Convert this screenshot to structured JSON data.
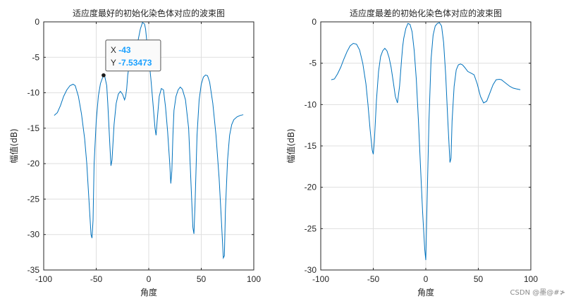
{
  "chart_data": [
    {
      "type": "line",
      "title": "适应度最好的初始化染色体对应的波束图",
      "xlabel": "角度",
      "ylabel": "幅值(dB)",
      "xlim": [
        -100,
        100
      ],
      "ylim": [
        -35,
        0
      ],
      "xticks": [
        "-100",
        "-50",
        "0",
        "50",
        "100"
      ],
      "yticks": [
        "0",
        "-5",
        "-10",
        "-15",
        "-20",
        "-25",
        "-30",
        "-35"
      ],
      "grid": true,
      "color": "#0072BD",
      "x": [
        -90,
        -87,
        -84,
        -81,
        -78,
        -75,
        -72,
        -70,
        -67,
        -64,
        -61,
        -59,
        -57,
        -55,
        -54,
        -53,
        -52,
        -50,
        -48,
        -46,
        -44,
        -43,
        -42,
        -40,
        -39,
        -38,
        -37,
        -36,
        -35,
        -33,
        -31,
        -29,
        -27,
        -25,
        -23,
        -22,
        -21,
        -20,
        -18,
        -16,
        -14,
        -12,
        -10,
        -8,
        -6,
        -4,
        -3,
        -2,
        0,
        2,
        4,
        6,
        7,
        8,
        10,
        12,
        14,
        16,
        18,
        20,
        21,
        22,
        23,
        24,
        26,
        28,
        30,
        32,
        35,
        38,
        40,
        42,
        43,
        44,
        46,
        48,
        50,
        52,
        54,
        56,
        58,
        61,
        64,
        67,
        69,
        71,
        72,
        73,
        75,
        77,
        79,
        81,
        84,
        87,
        90
      ],
      "y": [
        -13.2,
        -12.8,
        -11.8,
        -10.5,
        -9.6,
        -9.0,
        -8.8,
        -9.0,
        -10.5,
        -13.0,
        -16.5,
        -20.0,
        -25.0,
        -30.0,
        -30.5,
        -28.0,
        -20.0,
        -14.0,
        -10.5,
        -8.7,
        -7.9,
        -7.53,
        -7.6,
        -9.0,
        -11.5,
        -14.5,
        -17.5,
        -20.3,
        -19.5,
        -14.5,
        -11.5,
        -10.2,
        -9.8,
        -10.2,
        -11.0,
        -10.5,
        -9.5,
        -7.5,
        -5.5,
        -4.5,
        -4.0,
        -3.5,
        -2.5,
        -1.0,
        -0.1,
        -0.3,
        -1.0,
        -2.5,
        -5.0,
        -8.0,
        -11.5,
        -15.0,
        -16.0,
        -14.0,
        -10.5,
        -9.4,
        -9.6,
        -12.0,
        -15.5,
        -20.0,
        -22.8,
        -21.0,
        -16.0,
        -12.5,
        -10.5,
        -9.6,
        -9.2,
        -9.5,
        -11.0,
        -15.0,
        -22.0,
        -29.0,
        -29.9,
        -26.0,
        -16.0,
        -11.0,
        -8.8,
        -7.8,
        -7.5,
        -7.6,
        -8.5,
        -11.5,
        -16.0,
        -22.0,
        -27.5,
        -33.3,
        -33.0,
        -26.5,
        -19.5,
        -16.0,
        -14.5,
        -13.8,
        -13.4,
        -13.2,
        -13.1
      ]
    },
    {
      "type": "line",
      "title": "适应度最差的初始化染色体对应的波束图",
      "xlabel": "角度",
      "ylabel": "幅值(dB)",
      "xlim": [
        -100,
        100
      ],
      "ylim": [
        -30,
        0
      ],
      "xticks": [
        "-100",
        "-50",
        "0",
        "50",
        "100"
      ],
      "yticks": [
        "0",
        "-5",
        "-10",
        "-15",
        "-20",
        "-25",
        "-30"
      ],
      "grid": true,
      "color": "#0072BD",
      "x": [
        -90,
        -87,
        -84,
        -81,
        -78,
        -75,
        -72,
        -69,
        -66,
        -63,
        -60,
        -57,
        -55,
        -53,
        -51,
        -50,
        -49,
        -47,
        -45,
        -43,
        -41,
        -39,
        -37,
        -35,
        -33,
        -31,
        -29,
        -27,
        -25,
        -23,
        -22,
        -21,
        -19,
        -17,
        -15,
        -13,
        -11,
        -9,
        -7,
        -5,
        -3,
        -1,
        0,
        1,
        3,
        5,
        7,
        9,
        11,
        13,
        15,
        17,
        19,
        21,
        23,
        24,
        25,
        27,
        29,
        31,
        33,
        35,
        37,
        40,
        43,
        46,
        49,
        52,
        55,
        58,
        61,
        64,
        67,
        70,
        72,
        74,
        77,
        80,
        83,
        86,
        90
      ],
      "y": [
        -7.0,
        -6.9,
        -6.3,
        -5.5,
        -4.5,
        -3.6,
        -2.9,
        -2.6,
        -2.7,
        -3.4,
        -5.0,
        -7.5,
        -10.0,
        -13.0,
        -15.5,
        -16.0,
        -14.5,
        -9.5,
        -6.0,
        -4.2,
        -3.5,
        -3.2,
        -3.5,
        -4.3,
        -5.5,
        -7.2,
        -9.0,
        -9.8,
        -7.8,
        -4.5,
        -3.0,
        -2.0,
        -0.8,
        -0.2,
        -0.3,
        -1.2,
        -3.5,
        -7.0,
        -12.0,
        -17.5,
        -23.0,
        -27.5,
        -28.8,
        -23.0,
        -12.0,
        -4.5,
        -1.6,
        -0.5,
        -0.2,
        -0.1,
        -0.5,
        -2.5,
        -6.5,
        -12.0,
        -17.0,
        -16.5,
        -12.0,
        -7.8,
        -5.8,
        -5.2,
        -5.1,
        -5.2,
        -5.5,
        -6.0,
        -6.2,
        -6.4,
        -7.5,
        -9.0,
        -9.8,
        -9.6,
        -8.6,
        -7.6,
        -7.0,
        -6.95,
        -7.0,
        -7.2,
        -7.5,
        -7.8,
        -8.0,
        -8.1,
        -8.2
      ]
    }
  ],
  "datatip": {
    "x_label": "X",
    "x_value": "-43",
    "y_label": "Y",
    "y_value": "-7.53473"
  },
  "watermark": "CSDN @墨@#≯"
}
